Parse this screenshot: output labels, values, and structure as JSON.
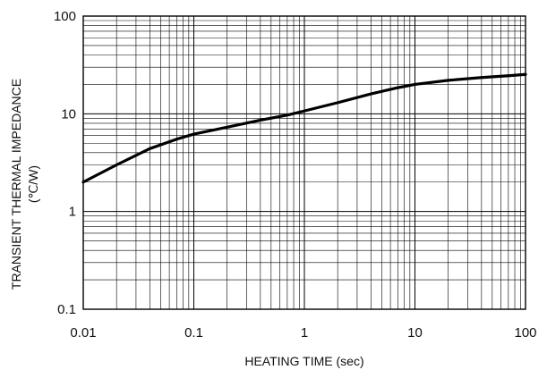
{
  "chart_data": {
    "type": "line",
    "title": "",
    "xlabel": "HEATING TIME (sec)",
    "ylabel_line1": "TRANSIENT THERMAL IMPEDANCE",
    "ylabel_line2": "(℃/W)",
    "x_scale": "log",
    "y_scale": "log",
    "xlim": [
      0.01,
      100
    ],
    "ylim": [
      0.1,
      100
    ],
    "x_ticks": [
      0.01,
      0.1,
      1,
      10,
      100
    ],
    "x_tick_labels": [
      "0.01",
      "0.1",
      "1",
      "10",
      "100"
    ],
    "y_ticks": [
      0.1,
      1,
      10,
      100
    ],
    "y_tick_labels": [
      "0.1",
      "1",
      "10",
      "100"
    ],
    "grid": true,
    "series": [
      {
        "color": "#000000",
        "x": [
          0.01,
          0.02,
          0.04,
          0.07,
          0.1,
          0.2,
          0.4,
          0.7,
          1,
          2,
          4,
          7,
          10,
          20,
          40,
          70,
          100
        ],
        "y": [
          2.0,
          3.0,
          4.4,
          5.5,
          6.2,
          7.3,
          8.6,
          9.7,
          10.7,
          13.0,
          16.0,
          18.5,
          20.0,
          22.0,
          23.5,
          24.5,
          25.3
        ]
      }
    ]
  }
}
